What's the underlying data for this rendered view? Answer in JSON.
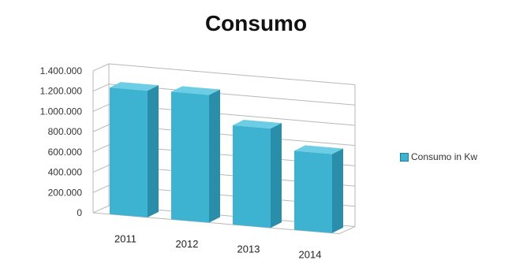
{
  "chart_data": {
    "type": "bar",
    "title": "Consumo",
    "categories": [
      "2011",
      "2012",
      "2013",
      "2014"
    ],
    "series": [
      {
        "name": "Consumo in Kw",
        "values": [
          1250000,
          1260000,
          980000,
          780000
        ]
      }
    ],
    "ylim": [
      0,
      1400000
    ],
    "yticks": [
      "1.400.000",
      "1.200.000",
      "1.000.000",
      "800.000",
      "600.000",
      "400.000",
      "200.000",
      "0"
    ],
    "ytick_values": [
      1400000,
      1200000,
      1000000,
      800000,
      600000,
      400000,
      200000,
      0
    ],
    "grid": true,
    "legend": "right",
    "colors": {
      "bar_front": "#3eb3d1",
      "bar_side": "#2a8daa",
      "bar_top": "#6ccde4",
      "grid": "#b8b8b8"
    }
  }
}
